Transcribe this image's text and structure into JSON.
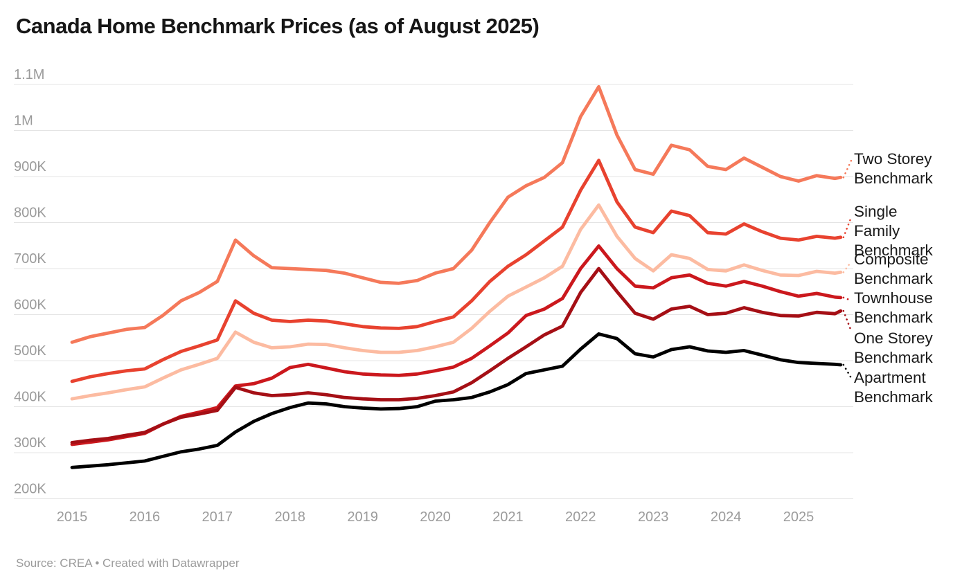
{
  "header": {
    "title": "Canada Home Benchmark Prices (as of August 2025)"
  },
  "footer": {
    "source": "Source: CREA • Created with Datawrapper"
  },
  "chart_data": {
    "type": "line",
    "title": "Canada Home Benchmark Prices (as of August 2025)",
    "xlabel": "",
    "ylabel": "",
    "x_range": [
      2015.0,
      2025.58
    ],
    "ylim_thousands": [
      200,
      1100
    ],
    "grid": true,
    "legend_position": "right-labels",
    "x_ticks": [
      2015,
      2016,
      2017,
      2018,
      2019,
      2020,
      2021,
      2022,
      2023,
      2024,
      2025
    ],
    "y_ticks": [
      {
        "v": 200,
        "label": "200K"
      },
      {
        "v": 300,
        "label": "300K"
      },
      {
        "v": 400,
        "label": "400K"
      },
      {
        "v": 500,
        "label": "500K"
      },
      {
        "v": 600,
        "label": "600K"
      },
      {
        "v": 700,
        "label": "700K"
      },
      {
        "v": 800,
        "label": "800K"
      },
      {
        "v": 900,
        "label": "900K"
      },
      {
        "v": 1000,
        "label": "1M"
      },
      {
        "v": 1100,
        "label": "1.1M"
      }
    ],
    "x": [
      2015,
      2015.25,
      2015.5,
      2015.75,
      2016,
      2016.25,
      2016.5,
      2016.75,
      2017,
      2017.25,
      2017.5,
      2017.75,
      2018,
      2018.25,
      2018.5,
      2018.75,
      2019,
      2019.25,
      2019.5,
      2019.75,
      2020,
      2020.25,
      2020.5,
      2020.75,
      2021,
      2021.25,
      2021.5,
      2021.75,
      2022,
      2022.25,
      2022.5,
      2022.75,
      2023,
      2023.25,
      2023.5,
      2023.75,
      2024,
      2024.25,
      2024.5,
      2024.75,
      2025,
      2025.25,
      2025.5,
      2025.58
    ],
    "series": [
      {
        "name": "Two Storey Benchmark",
        "label_lines": [
          "Two Storey",
          "Benchmark"
        ],
        "color": "#f5795a",
        "values_thousands_cad": [
          540,
          552,
          560,
          568,
          572,
          598,
          630,
          648,
          672,
          762,
          728,
          702,
          700,
          698,
          696,
          690,
          680,
          670,
          668,
          674,
          690,
          700,
          740,
          800,
          855,
          880,
          898,
          930,
          1030,
          1095,
          990,
          915,
          905,
          968,
          958,
          922,
          915,
          940,
          920,
          900,
          890,
          902,
          896,
          898
        ]
      },
      {
        "name": "Single Family Benchmark",
        "label_lines": [
          "Single",
          "Family",
          "Benchmark"
        ],
        "color": "#e8422f",
        "values_thousands_cad": [
          455,
          465,
          472,
          478,
          482,
          502,
          520,
          532,
          545,
          630,
          603,
          588,
          585,
          588,
          586,
          580,
          574,
          571,
          570,
          574,
          585,
          595,
          630,
          672,
          705,
          730,
          760,
          790,
          870,
          935,
          845,
          790,
          778,
          825,
          815,
          778,
          775,
          797,
          780,
          766,
          762,
          770,
          766,
          768
        ]
      },
      {
        "name": "Composite Benchmark",
        "label_lines": [
          "Composite",
          "Benchmark"
        ],
        "color": "#fcbba1",
        "values_thousands_cad": [
          417,
          424,
          430,
          437,
          443,
          462,
          480,
          492,
          505,
          562,
          540,
          528,
          530,
          536,
          535,
          528,
          522,
          518,
          518,
          522,
          530,
          540,
          570,
          607,
          640,
          660,
          680,
          705,
          785,
          838,
          770,
          722,
          695,
          730,
          722,
          698,
          695,
          708,
          696,
          686,
          685,
          694,
          690,
          692
        ]
      },
      {
        "name": "Townhouse Benchmark",
        "label_lines": [
          "Townhouse",
          "Benchmark"
        ],
        "color": "#cb181d",
        "values_thousands_cad": [
          318,
          323,
          328,
          335,
          342,
          362,
          379,
          388,
          398,
          445,
          450,
          462,
          485,
          492,
          484,
          476,
          471,
          469,
          468,
          471,
          478,
          486,
          505,
          532,
          560,
          598,
          612,
          635,
          700,
          749,
          700,
          662,
          658,
          680,
          686,
          668,
          662,
          672,
          662,
          650,
          640,
          646,
          638,
          637
        ]
      },
      {
        "name": "One Storey Benchmark",
        "label_lines": [
          "One Storey",
          "Benchmark"
        ],
        "color": "#a50f15",
        "values_thousands_cad": [
          322,
          327,
          331,
          338,
          344,
          362,
          377,
          384,
          392,
          442,
          430,
          424,
          426,
          430,
          426,
          420,
          417,
          415,
          415,
          418,
          424,
          432,
          452,
          478,
          505,
          530,
          556,
          575,
          648,
          700,
          650,
          603,
          590,
          612,
          618,
          600,
          603,
          615,
          605,
          598,
          597,
          605,
          602,
          608
        ]
      },
      {
        "name": "Apartment Benchmark",
        "label_lines": [
          "Apartment",
          "Benchmark"
        ],
        "color": "#000000",
        "values_thousands_cad": [
          268,
          271,
          274,
          278,
          282,
          292,
          302,
          308,
          316,
          345,
          368,
          385,
          398,
          408,
          406,
          400,
          397,
          395,
          396,
          400,
          412,
          415,
          420,
          432,
          448,
          472,
          480,
          488,
          525,
          558,
          548,
          515,
          508,
          524,
          530,
          521,
          518,
          522,
          512,
          502,
          496,
          494,
          492,
          491
        ]
      }
    ],
    "style": {
      "grid_color": "#e4e4e4",
      "tick_label_color": "#9b9b9b",
      "series_label_color": "#1a1a1a",
      "line_width": 4.8
    }
  }
}
